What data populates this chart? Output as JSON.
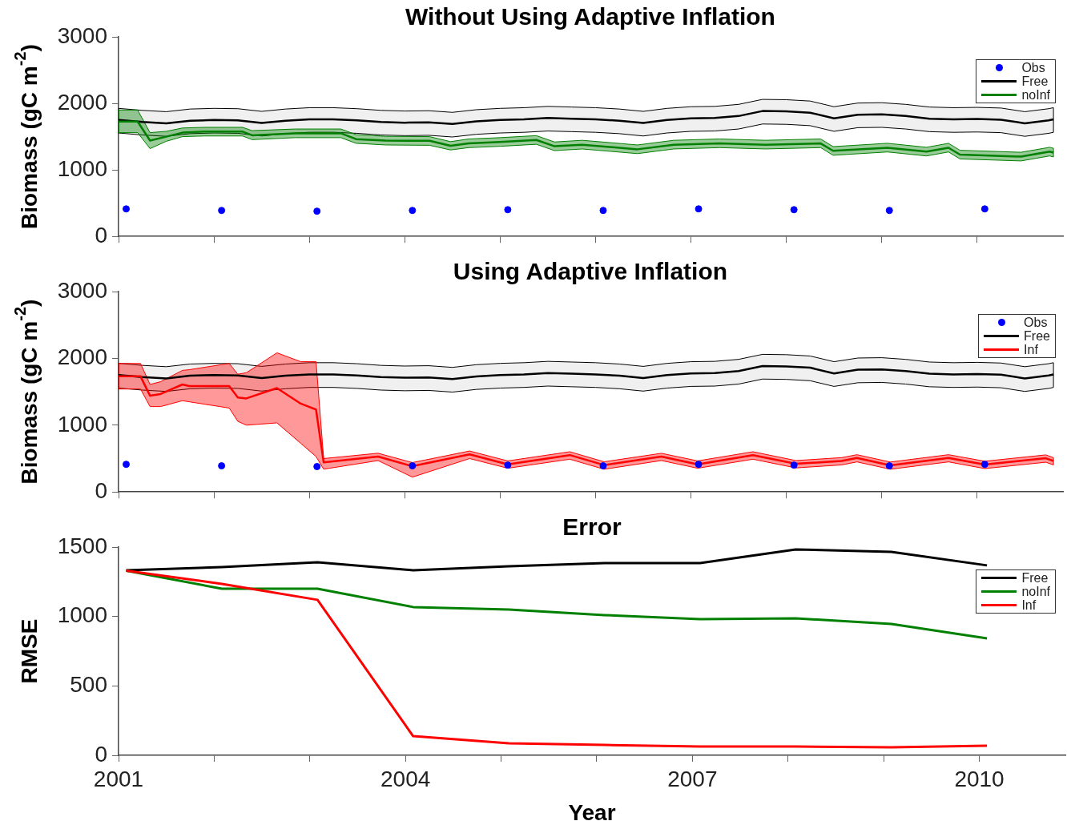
{
  "chart_data": [
    {
      "type": "line",
      "title": "Without Using Adaptive Inflation",
      "ylabel": "Biomass (gC m$^{-2}$)",
      "xlim": [
        2001,
        2010.9
      ],
      "xticks": [
        2001,
        {
          "value": 2002,
          "label": null
        },
        {
          "value": 2003,
          "label": null
        },
        2004,
        {
          "value": 2005,
          "label": null
        },
        {
          "value": 2006,
          "label": null
        },
        2007,
        {
          "value": 2008,
          "label": null
        },
        {
          "value": 2009,
          "label": null
        },
        2010
      ],
      "ylim": [
        0,
        3000
      ],
      "yticks": [
        0,
        1000,
        2000,
        3000
      ],
      "tick_labels": "y",
      "legend": "top right",
      "series": [
        {
          "name": "Obs",
          "type": "scatter",
          "marker": "circle",
          "color": "#0000ff",
          "x": [
            2001.08,
            2002.08,
            2003.08,
            2004.08,
            2005.08,
            2006.08,
            2007.08,
            2008.08,
            2009.08,
            2010.08
          ],
          "values": [
            414,
            391,
            380,
            391,
            402,
            391,
            414,
            402,
            391,
            414
          ]
        },
        {
          "name": "Free",
          "color": "#000000",
          "x": [
            2001,
            2001.25,
            2001.5,
            2001.75,
            2002,
            2002.25,
            2002.5,
            2002.75,
            2003,
            2003.25,
            2003.5,
            2003.75,
            2004,
            2004.25,
            2004.5,
            2004.75,
            2005,
            2005.25,
            2005.5,
            2005.75,
            2006,
            2006.25,
            2006.5,
            2006.75,
            2007,
            2007.25,
            2007.5,
            2007.75,
            2008,
            2008.25,
            2008.5,
            2008.75,
            2009,
            2009.25,
            2009.5,
            2009.75,
            2010,
            2010.25,
            2010.5,
            2010.75,
            2010.8
          ],
          "values": [
            1750,
            1720,
            1700,
            1740,
            1750,
            1745,
            1705,
            1740,
            1760,
            1760,
            1745,
            1720,
            1710,
            1715,
            1690,
            1730,
            1750,
            1760,
            1780,
            1770,
            1760,
            1740,
            1705,
            1750,
            1775,
            1780,
            1810,
            1885,
            1880,
            1860,
            1775,
            1830,
            1835,
            1810,
            1770,
            1760,
            1765,
            1755,
            1700,
            1745,
            1760
          ],
          "upper": [
            1925,
            1895,
            1875,
            1915,
            1925,
            1920,
            1880,
            1915,
            1935,
            1935,
            1920,
            1895,
            1885,
            1890,
            1865,
            1905,
            1925,
            1935,
            1955,
            1945,
            1935,
            1915,
            1880,
            1925,
            1950,
            1955,
            1985,
            2060,
            2055,
            2035,
            1950,
            2005,
            2010,
            1985,
            1945,
            1935,
            1940,
            1930,
            1875,
            1920,
            1935
          ],
          "lower": [
            1555,
            1525,
            1505,
            1545,
            1555,
            1550,
            1510,
            1545,
            1565,
            1565,
            1550,
            1525,
            1515,
            1520,
            1495,
            1535,
            1555,
            1565,
            1585,
            1575,
            1565,
            1545,
            1510,
            1555,
            1580,
            1585,
            1615,
            1690,
            1685,
            1665,
            1580,
            1635,
            1640,
            1615,
            1575,
            1565,
            1570,
            1560,
            1505,
            1550,
            1565
          ]
        },
        {
          "name": "noInf",
          "color": "#008000",
          "x": [
            2001,
            2001.2,
            2001.33,
            2001.5,
            2001.67,
            2001.9,
            2002.3,
            2002.4,
            2002.85,
            2003.33,
            2003.49,
            2003.8,
            2004.26,
            2004.48,
            2004.67,
            2005,
            2005.38,
            2005.57,
            2005.86,
            2006.44,
            2006.82,
            2007.3,
            2007.78,
            2008.36,
            2008.49,
            2009.06,
            2009.47,
            2009.7,
            2009.82,
            2010.46,
            2010.76,
            2010.8
          ],
          "values": [
            1727,
            1727,
            1441,
            1500,
            1560,
            1575,
            1575,
            1520,
            1550,
            1550,
            1463,
            1440,
            1437,
            1362,
            1400,
            1420,
            1450,
            1356,
            1379,
            1310,
            1379,
            1398,
            1379,
            1398,
            1287,
            1333,
            1276,
            1333,
            1230,
            1200,
            1276,
            1260
          ],
          "upper": [
            1900,
            1900,
            1560,
            1580,
            1630,
            1640,
            1640,
            1590,
            1615,
            1615,
            1530,
            1505,
            1500,
            1425,
            1465,
            1485,
            1515,
            1420,
            1445,
            1375,
            1445,
            1465,
            1445,
            1465,
            1350,
            1400,
            1340,
            1400,
            1295,
            1265,
            1340,
            1325
          ],
          "lower": [
            1560,
            1560,
            1320,
            1430,
            1500,
            1510,
            1510,
            1455,
            1485,
            1485,
            1400,
            1375,
            1370,
            1300,
            1335,
            1355,
            1385,
            1290,
            1315,
            1245,
            1315,
            1335,
            1315,
            1335,
            1220,
            1270,
            1210,
            1270,
            1165,
            1135,
            1210,
            1195
          ]
        }
      ]
    },
    {
      "type": "line",
      "title": "Using Adaptive Inflation",
      "ylabel": "Biomass (gC m$^{-2}$)",
      "xlim": [
        2001,
        2010.9
      ],
      "xticks": [
        2001,
        {
          "value": 2002,
          "label": null
        },
        {
          "value": 2003,
          "label": null
        },
        2004,
        {
          "value": 2005,
          "label": null
        },
        {
          "value": 2006,
          "label": null
        },
        2007,
        {
          "value": 2008,
          "label": null
        },
        {
          "value": 2009,
          "label": null
        },
        2010
      ],
      "ylim": [
        0,
        3000
      ],
      "yticks": [
        0,
        1000,
        2000,
        3000
      ],
      "tick_labels": "y",
      "legend": "top right",
      "series": [
        {
          "name": "Obs",
          "type": "scatter",
          "marker": "circle",
          "color": "#0000ff",
          "x": [
            2001.08,
            2002.08,
            2003.08,
            2004.08,
            2005.08,
            2006.08,
            2007.08,
            2008.08,
            2009.08,
            2010.08
          ],
          "values": [
            414,
            391,
            380,
            391,
            402,
            391,
            414,
            402,
            391,
            414
          ]
        },
        {
          "name": "Free",
          "color": "#000000",
          "x": [
            2001,
            2001.25,
            2001.5,
            2001.75,
            2002,
            2002.25,
            2002.5,
            2002.75,
            2003,
            2003.25,
            2003.5,
            2003.75,
            2004,
            2004.25,
            2004.5,
            2004.75,
            2005,
            2005.25,
            2005.5,
            2005.75,
            2006,
            2006.25,
            2006.5,
            2006.75,
            2007,
            2007.25,
            2007.5,
            2007.75,
            2008,
            2008.25,
            2008.5,
            2008.75,
            2009,
            2009.25,
            2009.5,
            2009.75,
            2010,
            2010.25,
            2010.5,
            2010.75,
            2010.8
          ],
          "values": [
            1750,
            1720,
            1700,
            1740,
            1750,
            1745,
            1705,
            1740,
            1760,
            1760,
            1745,
            1720,
            1710,
            1715,
            1690,
            1730,
            1750,
            1760,
            1780,
            1770,
            1760,
            1740,
            1705,
            1750,
            1775,
            1780,
            1810,
            1885,
            1880,
            1860,
            1775,
            1830,
            1835,
            1810,
            1770,
            1760,
            1765,
            1755,
            1700,
            1745,
            1760
          ],
          "upper": [
            1925,
            1895,
            1875,
            1915,
            1925,
            1920,
            1880,
            1915,
            1935,
            1935,
            1920,
            1895,
            1885,
            1890,
            1865,
            1905,
            1925,
            1935,
            1955,
            1945,
            1935,
            1915,
            1880,
            1925,
            1950,
            1955,
            1985,
            2060,
            2055,
            2035,
            1950,
            2005,
            2010,
            1985,
            1945,
            1935,
            1940,
            1930,
            1875,
            1920,
            1935
          ],
          "lower": [
            1555,
            1525,
            1505,
            1545,
            1555,
            1550,
            1510,
            1545,
            1565,
            1565,
            1550,
            1525,
            1515,
            1520,
            1495,
            1535,
            1555,
            1565,
            1585,
            1575,
            1565,
            1545,
            1510,
            1555,
            1580,
            1585,
            1615,
            1690,
            1685,
            1665,
            1580,
            1635,
            1640,
            1615,
            1575,
            1565,
            1570,
            1560,
            1505,
            1550,
            1565
          ]
        },
        {
          "name": "Inf",
          "color": "#ff0000",
          "x": [
            2001,
            2001.23,
            2001.33,
            2001.44,
            2001.67,
            2001.74,
            2002.16,
            2002.25,
            2002.34,
            2002.66,
            2002.91,
            2003.07,
            2003.15,
            2003.72,
            2004.08,
            2004.68,
            2005.08,
            2005.73,
            2006.09,
            2006.69,
            2007.07,
            2007.65,
            2008.1,
            2008.58,
            2008.74,
            2009.09,
            2009.7,
            2010.08,
            2010.72,
            2010.8
          ],
          "values": [
            1731,
            1731,
            1440,
            1466,
            1609,
            1586,
            1586,
            1414,
            1400,
            1555,
            1322,
            1234,
            442,
            530,
            385,
            563,
            414,
            552,
            402,
            529,
            414,
            552,
            421,
            464,
            508,
            398,
            508,
            411,
            505,
            464
          ],
          "upper": [
            1924,
            1924,
            1609,
            1650,
            1820,
            1830,
            1924,
            1762,
            1785,
            2083,
            1950,
            1950,
            500,
            580,
            440,
            613,
            465,
            602,
            452,
            579,
            465,
            602,
            470,
            514,
            558,
            448,
            558,
            460,
            555,
            514
          ],
          "lower": [
            1541,
            1541,
            1278,
            1278,
            1366,
            1350,
            1256,
            1057,
            1000,
            1034,
            728,
            530,
            341,
            470,
            222,
            500,
            355,
            490,
            340,
            470,
            355,
            490,
            360,
            405,
            450,
            340,
            450,
            350,
            445,
            405
          ]
        }
      ]
    },
    {
      "type": "line",
      "title": "Error",
      "xlabel": "Year",
      "ylabel": "RMSE",
      "xlim": [
        2001,
        2010.9
      ],
      "xticks": [
        2001,
        {
          "value": 2002,
          "label": null
        },
        {
          "value": 2003,
          "label": null
        },
        2004,
        {
          "value": 2005,
          "label": null
        },
        {
          "value": 2006,
          "label": null
        },
        2007,
        {
          "value": 2008,
          "label": null
        },
        {
          "value": 2009,
          "label": null
        },
        2010
      ],
      "ylim": [
        0,
        1500
      ],
      "yticks": [
        0,
        500,
        1000,
        1500
      ],
      "legend": "top right",
      "x": [
        2001.08,
        2002.08,
        2003.08,
        2004.08,
        2005.08,
        2006.08,
        2007.08,
        2008.08,
        2009.08,
        2010.08
      ],
      "series": [
        {
          "name": "Free",
          "color": "#000000",
          "values": [
            1333,
            1356,
            1390,
            1333,
            1362,
            1385,
            1385,
            1483,
            1466,
            1368
          ]
        },
        {
          "name": "noInf",
          "color": "#008000",
          "values": [
            1330,
            1200,
            1200,
            1068,
            1050,
            1010,
            981,
            987,
            946,
            842
          ]
        },
        {
          "name": "Inf",
          "color": "#ff0000",
          "values": [
            1330,
            1235,
            1120,
            138,
            87,
            75,
            63,
            63,
            58,
            69
          ]
        }
      ]
    }
  ]
}
